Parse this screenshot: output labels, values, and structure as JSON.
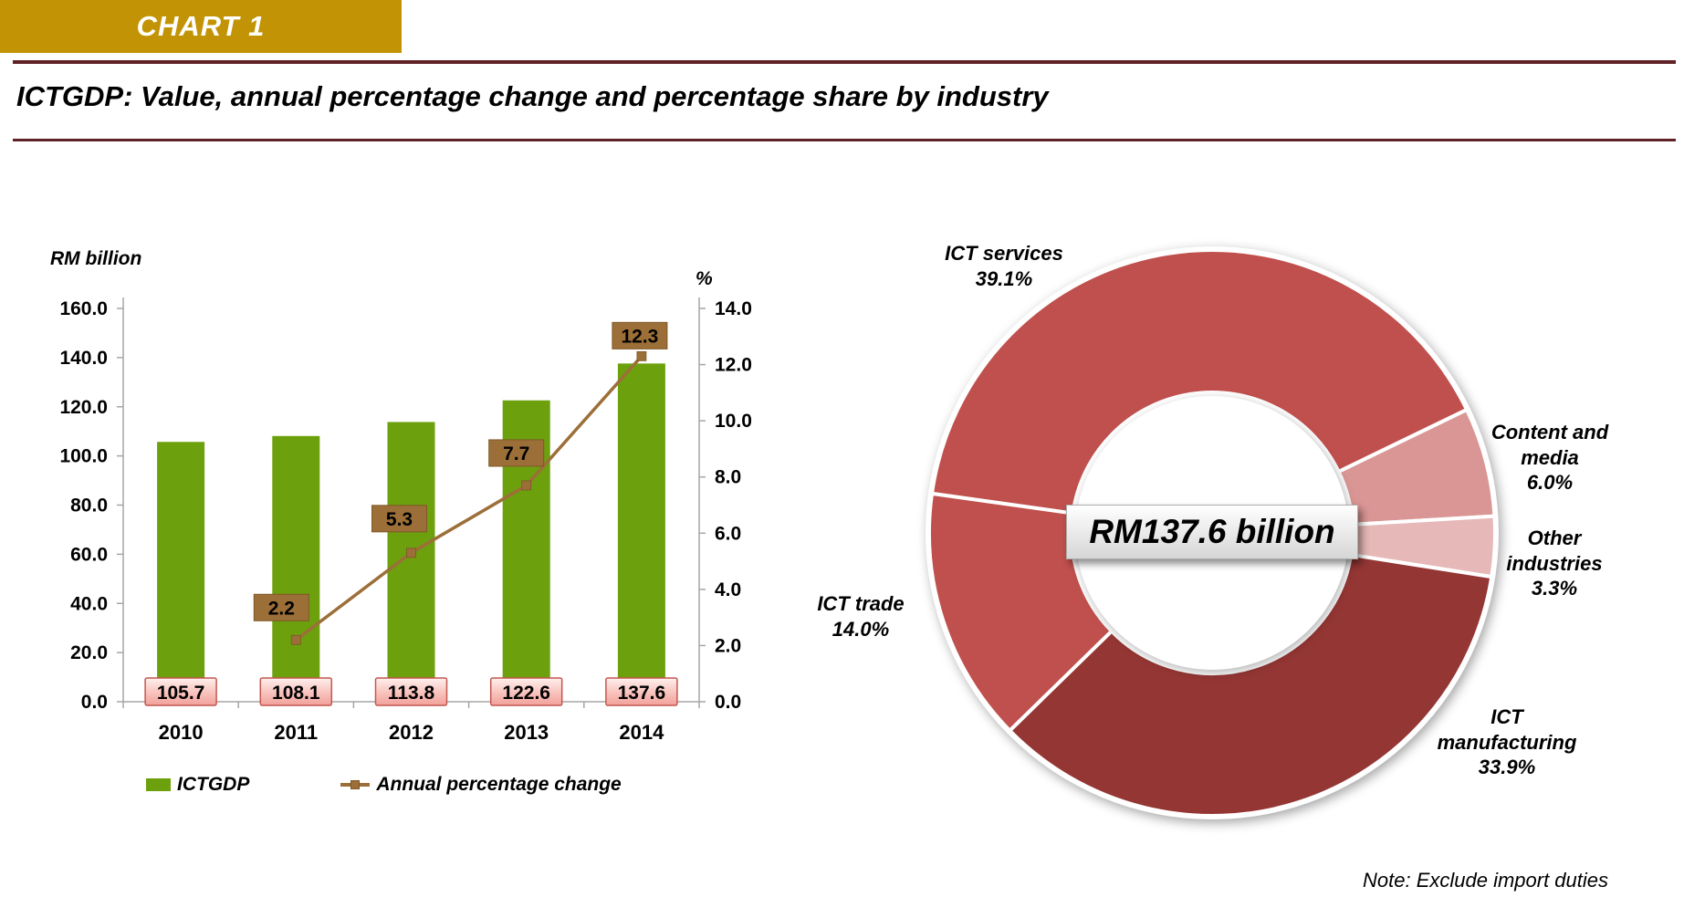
{
  "header": {
    "tag": "CHART 1",
    "title": "ICTGDP: Value, annual percentage change and percentage share by industry"
  },
  "colors": {
    "banner_gold": "#C29405",
    "rule_maroon": "#5F2126",
    "bar_green": "#6CA10D",
    "line_brown": "#9C6F38",
    "brown_border": "#7E5627",
    "pink_light": "#FEF0EE",
    "pink_mid": "#F9C6C0",
    "pink_deep": "#F2A09A",
    "pink_border": "#C4574F",
    "axis_gray": "#A6A6A6"
  },
  "chart_data": [
    {
      "type": "bar+line",
      "categories": [
        "2010",
        "2011",
        "2012",
        "2013",
        "2014"
      ],
      "series": [
        {
          "name": "ICTGDP",
          "type": "bar",
          "axis": "left",
          "color": "#6CA10D",
          "values": [
            105.7,
            108.1,
            113.8,
            122.6,
            137.6
          ]
        },
        {
          "name": "Annual percentage change",
          "type": "line",
          "axis": "right",
          "color": "#9C6F38",
          "values": [
            null,
            2.2,
            5.3,
            7.7,
            12.3
          ]
        }
      ],
      "left_axis": {
        "label": "RM billion",
        "min": 0,
        "max": 160,
        "step": 20
      },
      "right_axis": {
        "label": "%",
        "min": 0,
        "max": 14,
        "step": 2
      },
      "bar_value_labels": [
        "105.7",
        "108.1",
        "113.8",
        "122.6",
        "137.6"
      ],
      "line_value_labels": [
        "2.2",
        "5.3",
        "7.7",
        "12.3"
      ],
      "legend": [
        {
          "label": "ICTGDP"
        },
        {
          "label": "Annual percentage change"
        }
      ]
    },
    {
      "type": "donut",
      "center_label": "RM137.6 billion",
      "start_angle_deg": -82,
      "slices": [
        {
          "label": "ICT services",
          "pct": 39.1,
          "color": "#C0504D",
          "lines": [
            "ICT services",
            "39.1%"
          ]
        },
        {
          "label": "Content and media",
          "pct": 6.0,
          "color": "#D99694",
          "lines": [
            "Content and",
            "media",
            "6.0%"
          ]
        },
        {
          "label": "Other industries",
          "pct": 3.3,
          "color": "#E6B8B7",
          "lines": [
            "Other",
            "industries",
            "3.3%"
          ]
        },
        {
          "label": "ICT manufacturing",
          "pct": 33.9,
          "color": "#943634",
          "lines": [
            "ICT",
            "manufacturing",
            "33.9%"
          ]
        },
        {
          "label": "ICT trade",
          "pct": 14.0,
          "color": "#C0504D",
          "lines": [
            "ICT trade",
            "14.0%"
          ]
        }
      ]
    }
  ],
  "note": "Note: Exclude import duties"
}
